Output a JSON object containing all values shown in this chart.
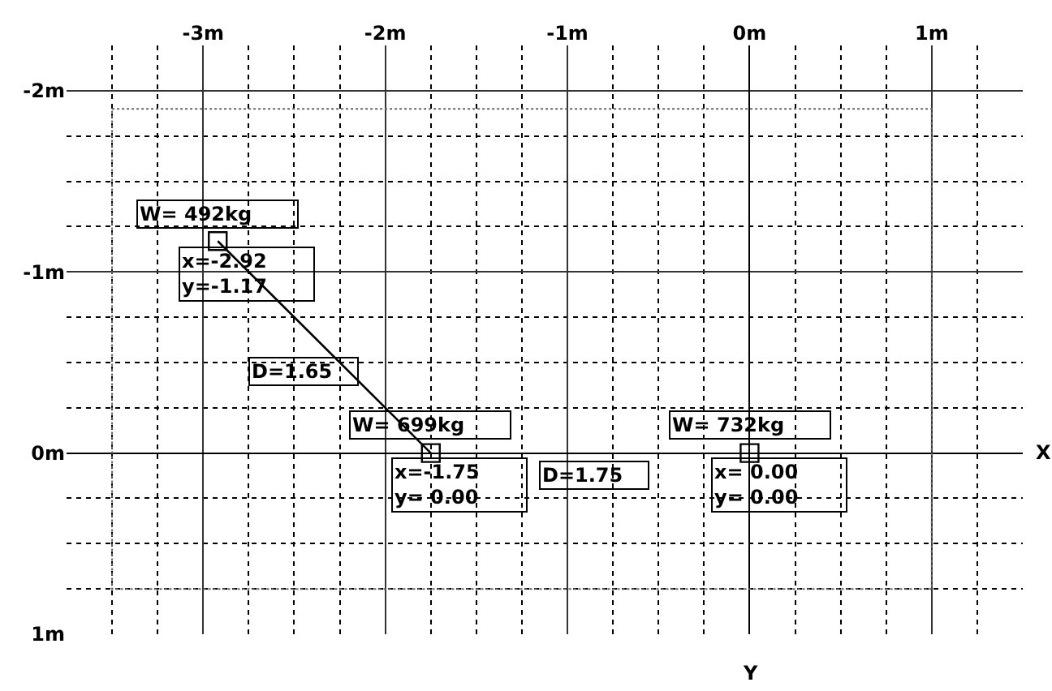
{
  "chart_data": {
    "type": "scatter",
    "xlabel": "X",
    "xlim": [
      -3.75,
      1.5
    ],
    "ylim": [
      1,
      -2.25
    ],
    "xticks": [
      {
        "value": -3,
        "label": "-3m"
      },
      {
        "value": -2,
        "label": "-2m"
      },
      {
        "value": -1,
        "label": "-1m"
      },
      {
        "value": 0,
        "label": "0m"
      },
      {
        "value": 1,
        "label": "1m"
      }
    ],
    "yticks": [
      {
        "value": -2,
        "label": "-2m"
      },
      {
        "value": -1,
        "label": "-1m"
      },
      {
        "value": 0,
        "label": "0m"
      },
      {
        "value": 1,
        "label": "1m"
      }
    ],
    "grid": true,
    "series": [
      {
        "type": "line",
        "color": "#000000",
        "line_style": "solid",
        "x": [
          -2.92,
          -1.75
        ],
        "values": [
          -1.17,
          0
        ]
      },
      {
        "marker": "square",
        "color": "#000000",
        "x": [
          -2.92,
          -1.75,
          0
        ],
        "values": [
          -1.17,
          0,
          0
        ]
      }
    ],
    "annotations": [
      {
        "text": "W= 492kg",
        "x": -2.92,
        "y": -1.17
      },
      {
        "text": "x=-2.92\ny=-1.17",
        "x": -2.92,
        "y": -1.17
      },
      {
        "text": "W= 699kg",
        "x": -1.75,
        "y": 0
      },
      {
        "text": "x=-1.75\ny= 0.00",
        "x": -1.75,
        "y": 0
      },
      {
        "text": "W= 732kg",
        "x": 0,
        "y": 0
      },
      {
        "text": "x= 0.00\ny= 0.00",
        "x": 0,
        "y": 0
      },
      "D=1.65",
      "D=1.75",
      "Y"
    ]
  }
}
